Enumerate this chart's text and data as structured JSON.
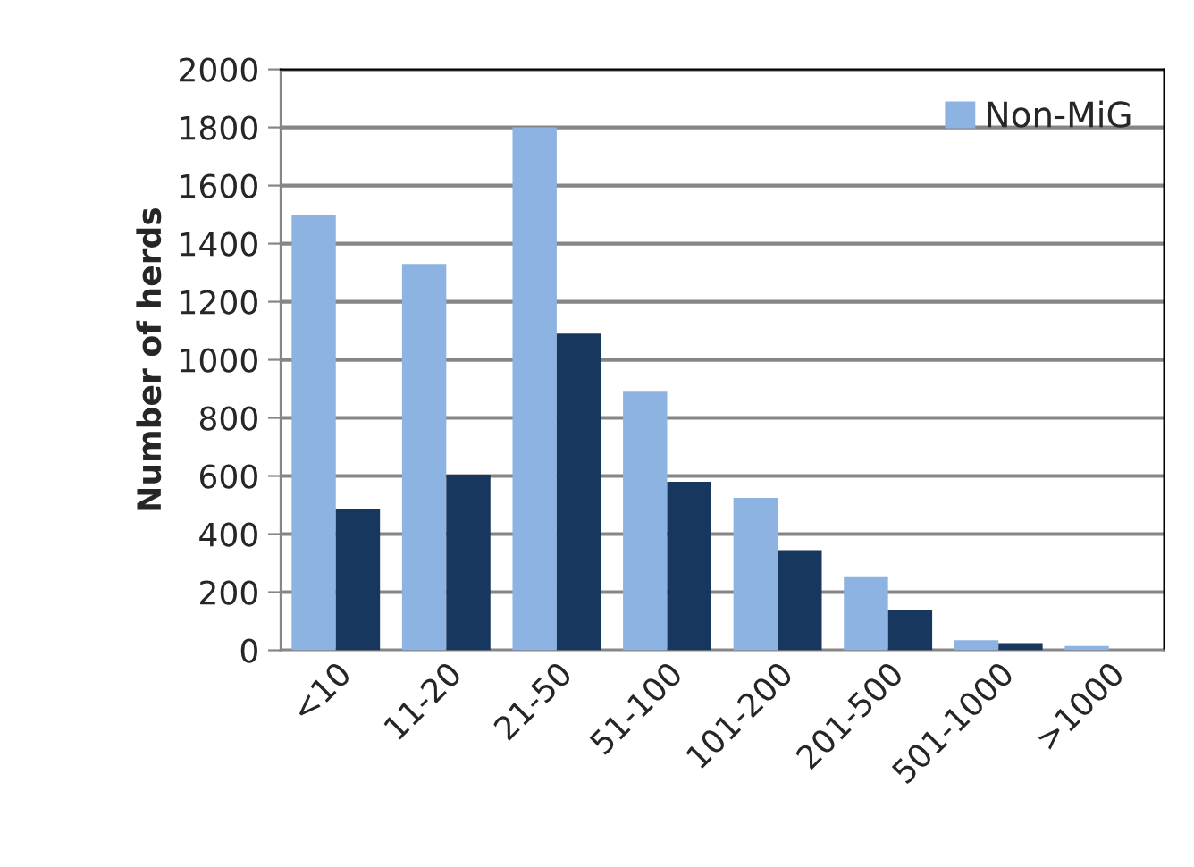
{
  "chart_data": {
    "type": "bar",
    "ylabel": "Number of herds",
    "categories": [
      "<10",
      "11-20",
      "21-50",
      "51-100",
      "101-200",
      "201-500",
      "501-1000",
      ">1000"
    ],
    "series": [
      {
        "name": "Non-MiG",
        "color": "#8db3e2",
        "values": [
          1500,
          1330,
          1800,
          890,
          525,
          255,
          35,
          15
        ]
      },
      {
        "color": "#17375e",
        "values": [
          485,
          605,
          1090,
          580,
          345,
          140,
          25,
          null
        ]
      }
    ],
    "ylim": [
      0,
      2000
    ],
    "yticks": [
      0,
      200,
      400,
      600,
      800,
      1000,
      1200,
      1400,
      1600,
      1800,
      2000
    ],
    "grid": "y",
    "legend": "top right"
  }
}
